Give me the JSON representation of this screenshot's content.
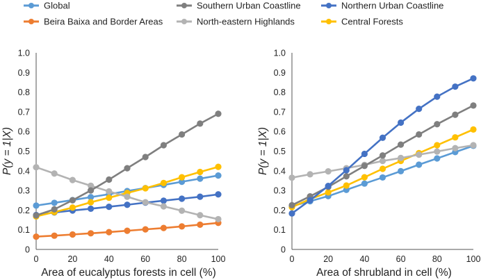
{
  "legend": {
    "placement": "top",
    "entries": [
      {
        "name": "Global",
        "color": "#5B9BD5"
      },
      {
        "name": "Southern Urban Coastline",
        "color": "#7F7F7F"
      },
      {
        "name": "Northern Urban Coastline",
        "color": "#4472C4"
      },
      {
        "name": "Beira Baixa and Border Areas",
        "color": "#ED7D31"
      },
      {
        "name": "North-eastern Highlands",
        "color": "#B3B3B3"
      },
      {
        "name": "Central Forests",
        "color": "#FFC000"
      }
    ]
  },
  "chart_data": [
    {
      "type": "line",
      "xlabel": "Area of eucalyptus forests in cell (%)",
      "ylabel": "P(y = 1|X)",
      "xlim": [
        0,
        100
      ],
      "ylim": [
        0,
        1.0
      ],
      "xticks": [
        0,
        20,
        40,
        60,
        80,
        100
      ],
      "yticks": [
        "0",
        "0.1",
        "0.2",
        "0.3",
        "0.4",
        "0.5",
        "0.6",
        "0.7",
        "0.8",
        "0.9",
        "1.0"
      ],
      "grid": false,
      "x": [
        0,
        10,
        20,
        30,
        40,
        50,
        60,
        70,
        80,
        90,
        100
      ],
      "series": [
        {
          "name": "Beira Baixa and Border Areas",
          "color": "#ED7D31",
          "values": [
            0.065,
            0.07,
            0.076,
            0.082,
            0.088,
            0.095,
            0.102,
            0.109,
            0.117,
            0.126,
            0.135
          ]
        },
        {
          "name": "Northern Urban Coastline",
          "color": "#4472C4",
          "values": [
            0.175,
            0.188,
            0.198,
            0.207,
            0.217,
            0.227,
            0.238,
            0.248,
            0.258,
            0.268,
            0.28
          ]
        },
        {
          "name": "Global",
          "color": "#5B9BD5",
          "values": [
            0.223,
            0.237,
            0.251,
            0.266,
            0.281,
            0.297,
            0.312,
            0.328,
            0.344,
            0.36,
            0.376
          ]
        },
        {
          "name": "Central Forests",
          "color": "#FFC000",
          "values": [
            0.168,
            0.19,
            0.213,
            0.24,
            0.263,
            0.287,
            0.311,
            0.338,
            0.367,
            0.394,
            0.42
          ]
        },
        {
          "name": "North-eastern Highlands",
          "color": "#B3B3B3",
          "values": [
            0.418,
            0.386,
            0.353,
            0.324,
            0.295,
            0.268,
            0.24,
            0.219,
            0.197,
            0.174,
            0.154
          ]
        },
        {
          "name": "Southern Urban Coastline",
          "color": "#7F7F7F",
          "values": [
            0.173,
            0.204,
            0.25,
            0.3,
            0.355,
            0.413,
            0.47,
            0.53,
            0.585,
            0.64,
            0.69
          ]
        }
      ]
    },
    {
      "type": "line",
      "xlabel": "Area of shrubland in cell (%)",
      "ylabel": "P(y = 1|X)",
      "xlim": [
        0,
        100
      ],
      "ylim": [
        0,
        1.0
      ],
      "xticks": [
        0,
        20,
        40,
        60,
        80,
        100
      ],
      "yticks": [
        "0",
        "0.1",
        "0.2",
        "0.3",
        "0.4",
        "0.5",
        "0.6",
        "0.7",
        "0.8",
        "0.9",
        "1.0"
      ],
      "grid": false,
      "x": [
        0,
        10,
        20,
        30,
        40,
        50,
        60,
        70,
        80,
        90,
        100
      ],
      "series": [
        {
          "name": "Global",
          "color": "#5B9BD5",
          "values": [
            0.22,
            0.245,
            0.271,
            0.303,
            0.335,
            0.366,
            0.398,
            0.431,
            0.463,
            0.495,
            0.527
          ]
        },
        {
          "name": "Central Forests",
          "color": "#FFC000",
          "values": [
            0.215,
            0.256,
            0.29,
            0.325,
            0.367,
            0.41,
            0.45,
            0.49,
            0.53,
            0.57,
            0.61
          ]
        },
        {
          "name": "North-eastern Highlands",
          "color": "#B3B3B3",
          "values": [
            0.365,
            0.382,
            0.397,
            0.413,
            0.43,
            0.45,
            0.465,
            0.482,
            0.498,
            0.515,
            0.53
          ]
        },
        {
          "name": "Southern Urban Coastline",
          "color": "#7F7F7F",
          "values": [
            0.225,
            0.27,
            0.318,
            0.372,
            0.425,
            0.478,
            0.533,
            0.585,
            0.637,
            0.685,
            0.732
          ]
        },
        {
          "name": "Northern Urban Coastline",
          "color": "#4472C4",
          "values": [
            0.183,
            0.25,
            0.323,
            0.403,
            0.486,
            0.568,
            0.645,
            0.715,
            0.777,
            0.828,
            0.87
          ]
        }
      ]
    }
  ]
}
